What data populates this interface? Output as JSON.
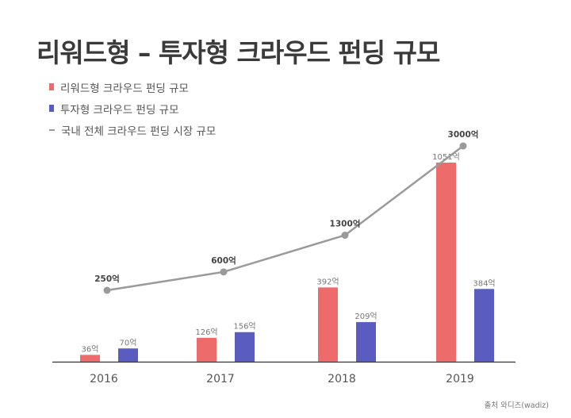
{
  "title": "리워드형 – 투자형 크라우드 펀딩 규모",
  "source": "출처 와디즈(wadiz)",
  "colors": {
    "reward": "#ee6b6b",
    "invest": "#5a5cc0",
    "total": "#9a9a9a"
  },
  "chart_data": {
    "type": "bar",
    "categories": [
      "2016",
      "2017",
      "2018",
      "2019"
    ],
    "series": [
      {
        "name": "리워드형 크라우드 펀딩 규모",
        "kind": "bar",
        "values": [
          36,
          126,
          392,
          1051
        ],
        "labels": [
          "36억",
          "126억",
          "392억",
          "1051억"
        ]
      },
      {
        "name": "투자형 크라우드 펀딩 규모",
        "kind": "bar",
        "values": [
          70,
          156,
          209,
          384
        ],
        "labels": [
          "70억",
          "156억",
          "209억",
          "384억"
        ]
      },
      {
        "name": "국내 전체 크라우드 펀딩 시장 규모",
        "kind": "line",
        "values": [
          250,
          600,
          1300,
          3000
        ],
        "labels": [
          "250억",
          "600억",
          "1300억",
          "3000억"
        ]
      }
    ],
    "legend": "top-left",
    "grid": false
  }
}
